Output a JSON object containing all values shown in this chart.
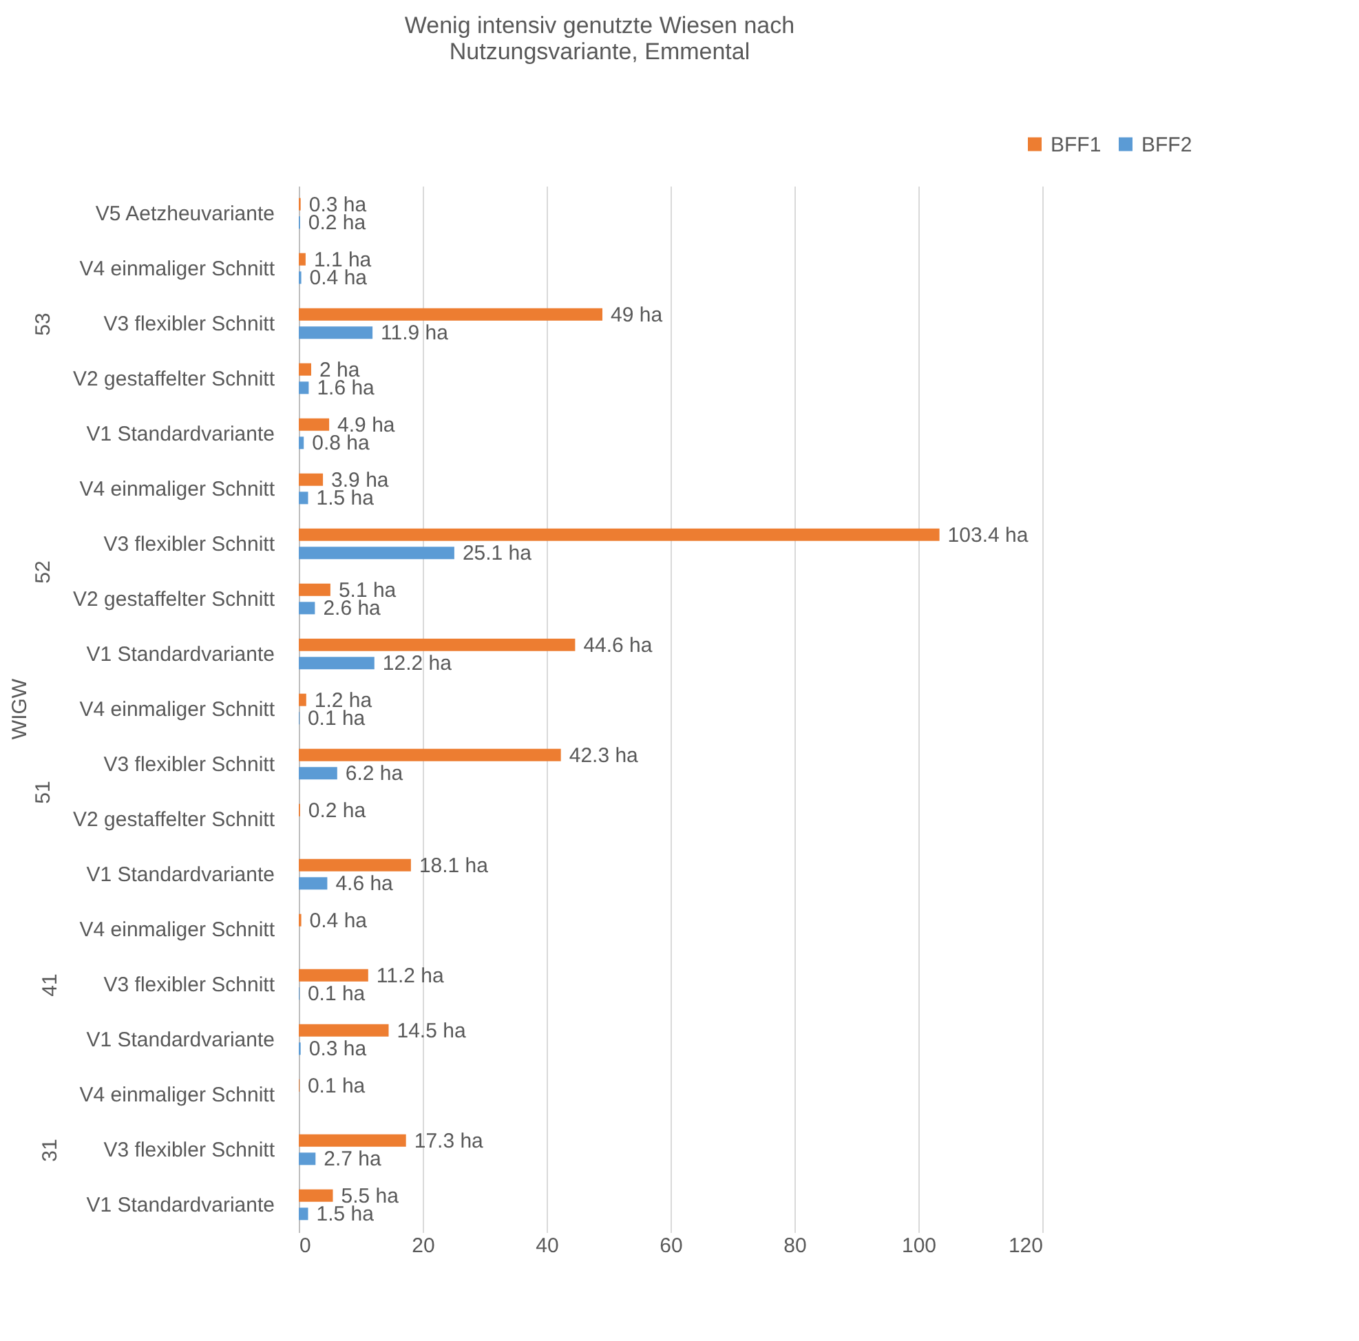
{
  "chart_data": [
    {
      "type": "bar",
      "orientation": "horizontal",
      "title": "Wenig intensiv genutzte Wiesen nach\nNutzungsvariante, Emmental",
      "legend": "top",
      "ylabel": "53",
      "annotations": [
        "WIGW"
      ],
      "xlim": [
        0,
        120
      ],
      "xticks": [
        0,
        20,
        40,
        60,
        80,
        100,
        120
      ],
      "grid": "x",
      "tick_labels": "y",
      "categories": [
        "V5 Aetzheuvariante",
        "V4 einmaliger Schnitt",
        "V3 flexibler Schnitt",
        "V2 gestaffelter Schnitt",
        "V1 Standardvariante"
      ],
      "series": [
        {
          "name": "BFF1",
          "color": "#ed7d31",
          "values": [
            0.3,
            1.1,
            49,
            2,
            4.9
          ],
          "value_labels": [
            "0.3 ha",
            "1.1 ha",
            "49 ha",
            "2 ha",
            "4.9 ha"
          ]
        },
        {
          "name": "BFF2",
          "color": "#5b9bd5",
          "values": [
            0.2,
            0.4,
            11.9,
            1.6,
            0.8
          ],
          "value_labels": [
            "0.2 ha",
            "0.4 ha",
            "11.9 ha",
            "1.6 ha",
            "0.8 ha"
          ]
        }
      ]
    },
    {
      "type": "bar",
      "orientation": "horizontal",
      "legend": false,
      "ylabel": "52",
      "xlim": [
        0,
        120
      ],
      "xticks": [
        0,
        20,
        40,
        60,
        80,
        100,
        120
      ],
      "grid": "x",
      "tick_labels": "y",
      "categories": [
        "V4 einmaliger Schnitt",
        "V3 flexibler Schnitt",
        "V2 gestaffelter Schnitt",
        "V1 Standardvariante"
      ],
      "series": [
        {
          "name": "BFF1",
          "color": "#ed7d31",
          "values": [
            3.9,
            103.4,
            5.1,
            44.6
          ],
          "value_labels": [
            "3.9 ha",
            "103.4 ha",
            "5.1 ha",
            "44.6 ha"
          ]
        },
        {
          "name": "BFF2",
          "color": "#5b9bd5",
          "values": [
            1.5,
            25.1,
            2.6,
            12.2
          ],
          "value_labels": [
            "1.5 ha",
            "25.1 ha",
            "2.6 ha",
            "12.2 ha"
          ]
        }
      ]
    },
    {
      "type": "bar",
      "orientation": "horizontal",
      "legend": false,
      "ylabel": "51",
      "xlim": [
        0,
        120
      ],
      "xticks": [
        0,
        20,
        40,
        60,
        80,
        100,
        120
      ],
      "grid": "x",
      "tick_labels": "y",
      "categories": [
        "V4 einmaliger Schnitt",
        "V3 flexibler Schnitt",
        "V2 gestaffelter Schnitt",
        "V1 Standardvariante"
      ],
      "series": [
        {
          "name": "BFF1",
          "color": "#ed7d31",
          "values": [
            1.2,
            42.3,
            0.2,
            18.1
          ],
          "value_labels": [
            "1.2 ha",
            "42.3 ha",
            "0.2 ha",
            "18.1 ha"
          ]
        },
        {
          "name": "BFF2",
          "color": "#5b9bd5",
          "values": [
            0.1,
            6.2,
            null,
            4.6
          ],
          "value_labels": [
            "0.1 ha",
            "6.2 ha",
            null,
            "4.6 ha"
          ]
        }
      ]
    },
    {
      "type": "bar",
      "orientation": "horizontal",
      "legend": false,
      "ylabel": "41",
      "xlim": [
        0,
        120
      ],
      "xticks": [
        0,
        20,
        40,
        60,
        80,
        100,
        120
      ],
      "grid": "x",
      "tick_labels": "y",
      "categories": [
        "V4 einmaliger Schnitt",
        "V3 flexibler Schnitt",
        "V1 Standardvariante"
      ],
      "series": [
        {
          "name": "BFF1",
          "color": "#ed7d31",
          "values": [
            0.4,
            11.2,
            14.5
          ],
          "value_labels": [
            "0.4 ha",
            "11.2 ha",
            "14.5 ha"
          ]
        },
        {
          "name": "BFF2",
          "color": "#5b9bd5",
          "values": [
            null,
            0.1,
            0.3
          ],
          "value_labels": [
            null,
            "0.1 ha",
            "0.3 ha"
          ]
        }
      ]
    },
    {
      "type": "bar",
      "orientation": "horizontal",
      "legend": false,
      "ylabel": "31",
      "xlim": [
        0,
        120
      ],
      "xticks": [
        0,
        20,
        40,
        60,
        80,
        100,
        120
      ],
      "grid": "x",
      "categories": [
        "V4 einmaliger Schnitt",
        "V3 flexibler Schnitt",
        "V1 Standardvariante"
      ],
      "series": [
        {
          "name": "BFF1",
          "color": "#ed7d31",
          "values": [
            0.1,
            17.3,
            5.5
          ],
          "value_labels": [
            "0.1 ha",
            "17.3 ha",
            "5.5 ha"
          ]
        },
        {
          "name": "BFF2",
          "color": "#5b9bd5",
          "values": [
            null,
            2.7,
            1.5
          ],
          "value_labels": [
            null,
            "2.7 ha",
            "1.5 ha"
          ]
        }
      ]
    }
  ]
}
